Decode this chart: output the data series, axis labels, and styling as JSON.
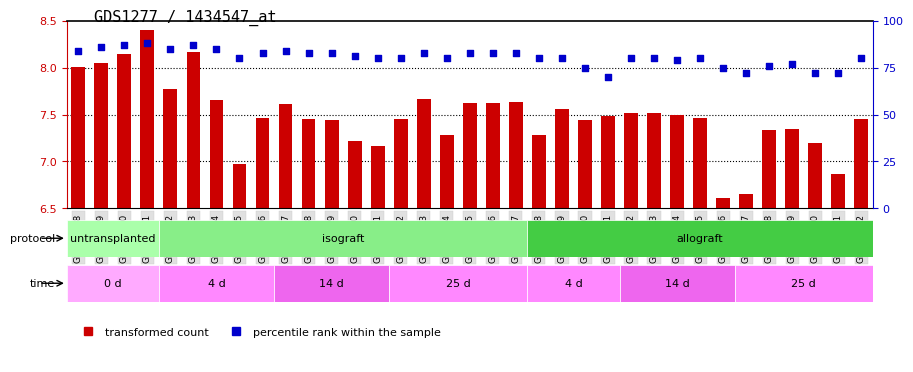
{
  "title": "GDS1277 / 1434547_at",
  "samples": [
    "GSM77008",
    "GSM77009",
    "GSM77010",
    "GSM77011",
    "GSM77012",
    "GSM77013",
    "GSM77014",
    "GSM77015",
    "GSM77016",
    "GSM77017",
    "GSM77018",
    "GSM77019",
    "GSM77020",
    "GSM77021",
    "GSM77022",
    "GSM77023",
    "GSM77024",
    "GSM77025",
    "GSM77026",
    "GSM77027",
    "GSM77028",
    "GSM77029",
    "GSM77030",
    "GSM77031",
    "GSM77032",
    "GSM77033",
    "GSM77034",
    "GSM77035",
    "GSM77036",
    "GSM77037",
    "GSM77038",
    "GSM77039",
    "GSM77040",
    "GSM77041",
    "GSM77042"
  ],
  "transformed_count": [
    8.01,
    8.05,
    8.15,
    8.4,
    7.77,
    8.17,
    7.65,
    6.97,
    7.46,
    7.61,
    7.45,
    7.44,
    7.22,
    7.16,
    7.45,
    7.67,
    7.28,
    7.62,
    7.62,
    7.63,
    7.28,
    7.56,
    7.44,
    7.48,
    7.52,
    7.52,
    7.5,
    7.46,
    6.61,
    6.65,
    7.33,
    7.35,
    7.2,
    6.87,
    7.45
  ],
  "percentile_rank": [
    84,
    86,
    87,
    88,
    85,
    87,
    85,
    80,
    83,
    84,
    83,
    83,
    81,
    80,
    80,
    83,
    80,
    83,
    83,
    83,
    80,
    80,
    75,
    70,
    80,
    80,
    79,
    80,
    75,
    72,
    76,
    77,
    72,
    72,
    80
  ],
  "ylim_left": [
    6.5,
    8.5
  ],
  "ylim_right": [
    0,
    100
  ],
  "yticks_left": [
    6.5,
    7.0,
    7.5,
    8.0,
    8.5
  ],
  "yticks_right": [
    0,
    25,
    50,
    75,
    100
  ],
  "bar_color": "#cc0000",
  "dot_color": "#0000cc",
  "grid_color": "#000000",
  "protocol_row": [
    {
      "label": "untransplanted",
      "start": 0,
      "end": 4,
      "color": "#aaffaa"
    },
    {
      "label": "isograft",
      "start": 4,
      "end": 20,
      "color": "#88ee88"
    },
    {
      "label": "allograft",
      "start": 20,
      "end": 35,
      "color": "#44cc44"
    }
  ],
  "time_row": [
    {
      "label": "0 d",
      "start": 0,
      "end": 4,
      "color": "#ffaaff"
    },
    {
      "label": "4 d",
      "start": 4,
      "end": 9,
      "color": "#ff88ff"
    },
    {
      "label": "14 d",
      "start": 9,
      "end": 14,
      "color": "#ee66ee"
    },
    {
      "label": "25 d",
      "start": 14,
      "end": 20,
      "color": "#ff88ff"
    },
    {
      "label": "4 d",
      "start": 20,
      "end": 24,
      "color": "#ff88ff"
    },
    {
      "label": "14 d",
      "start": 24,
      "end": 29,
      "color": "#ee66ee"
    },
    {
      "label": "25 d",
      "start": 29,
      "end": 35,
      "color": "#ff88ff"
    }
  ],
  "legend_items": [
    {
      "label": "transformed count",
      "color": "#cc0000",
      "marker": "s"
    },
    {
      "label": "percentile rank within the sample",
      "color": "#0000cc",
      "marker": "s"
    }
  ],
  "bg_color": "#ffffff",
  "ax_label_color_left": "#cc0000",
  "ax_label_color_right": "#0000cc"
}
